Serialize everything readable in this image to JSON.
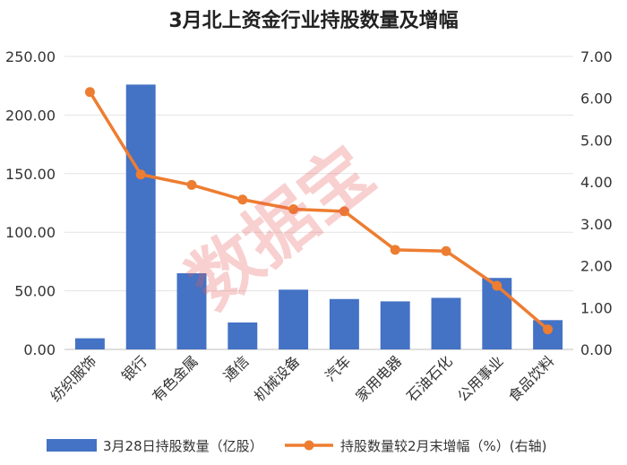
{
  "chart_data": {
    "type": "bar",
    "title": "3月北上资金行业持股数量及增幅",
    "categories": [
      "纺织服饰",
      "银行",
      "有色金属",
      "通信",
      "机械设备",
      "汽车",
      "家用电器",
      "石油石化",
      "公用事业",
      "食品饮料"
    ],
    "series": [
      {
        "name": "3月28日持股数量（亿股）",
        "type": "bar",
        "axis": "left",
        "color": "#4472c4",
        "values": [
          9.5,
          226,
          65,
          23,
          51,
          43,
          41,
          44,
          61,
          25
        ]
      },
      {
        "name": "持股数量较2月末增幅（%）(右轴)",
        "type": "line",
        "axis": "right",
        "color": "#ed7d31",
        "values": [
          6.15,
          4.18,
          3.93,
          3.58,
          3.35,
          3.3,
          2.38,
          2.35,
          1.52,
          0.48
        ]
      }
    ],
    "y_left": {
      "min": 0,
      "max": 250,
      "ticks": [
        "0.00",
        "50.00",
        "100.00",
        "150.00",
        "200.00",
        "250.00"
      ]
    },
    "y_right": {
      "min": 0,
      "max": 7,
      "ticks": [
        "0.00",
        "1.00",
        "2.00",
        "3.00",
        "4.00",
        "5.00",
        "6.00",
        "7.00"
      ]
    },
    "grid": true,
    "legend_position": "bottom"
  },
  "watermark": "数据宝"
}
